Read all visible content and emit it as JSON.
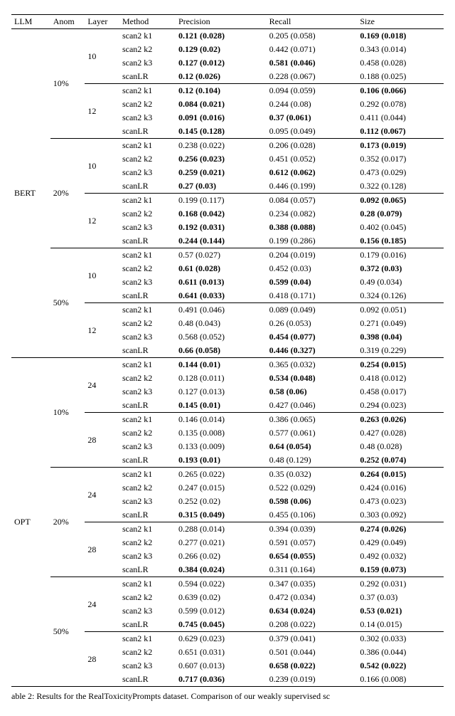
{
  "header": {
    "llm": "LLM",
    "anom": "Anom",
    "layer": "Layer",
    "method": "Method",
    "precision": "Precision",
    "recall": "Recall",
    "size": "Size"
  },
  "llms": [
    {
      "name": "BERT",
      "anoms": [
        {
          "label": "10%",
          "layers": [
            {
              "label": "10",
              "rows": [
                {
                  "method": "scan2 k1",
                  "p": "0.121 (0.028)",
                  "pb": true,
                  "r": "0.205 (0.058)",
                  "rb": false,
                  "s": "0.169 (0.018)",
                  "sb": true
                },
                {
                  "method": "scan2 k2",
                  "p": "0.129 (0.02)",
                  "pb": true,
                  "r": "0.442 (0.071)",
                  "rb": false,
                  "s": "0.343 (0.014)",
                  "sb": false
                },
                {
                  "method": "scan2 k3",
                  "p": "0.127 (0.012)",
                  "pb": true,
                  "r": "0.581 (0.046)",
                  "rb": true,
                  "s": "0.458 (0.028)",
                  "sb": false
                },
                {
                  "method": "scanLR",
                  "p": "0.12 (0.026)",
                  "pb": true,
                  "r": "0.228 (0.067)",
                  "rb": false,
                  "s": "0.188 (0.025)",
                  "sb": false
                }
              ]
            },
            {
              "label": "12",
              "rows": [
                {
                  "method": "scan2 k1",
                  "p": "0.12 (0.104)",
                  "pb": true,
                  "r": "0.094 (0.059)",
                  "rb": false,
                  "s": "0.106 (0.066)",
                  "sb": true
                },
                {
                  "method": "scan2 k2",
                  "p": "0.084 (0.021)",
                  "pb": true,
                  "r": "0.244 (0.08)",
                  "rb": false,
                  "s": "0.292 (0.078)",
                  "sb": false
                },
                {
                  "method": "scan2 k3",
                  "p": "0.091 (0.016)",
                  "pb": true,
                  "r": "0.37 (0.061)",
                  "rb": true,
                  "s": "0.411 (0.044)",
                  "sb": false
                },
                {
                  "method": "scanLR",
                  "p": "0.145 (0.128)",
                  "pb": true,
                  "r": "0.095 (0.049)",
                  "rb": false,
                  "s": "0.112 (0.067)",
                  "sb": true
                }
              ]
            }
          ]
        },
        {
          "label": "20%",
          "layers": [
            {
              "label": "10",
              "rows": [
                {
                  "method": "scan2 k1",
                  "p": "0.238 (0.022)",
                  "pb": false,
                  "r": "0.206 (0.028)",
                  "rb": false,
                  "s": "0.173 (0.019)",
                  "sb": true
                },
                {
                  "method": "scan2 k2",
                  "p": "0.256 (0.023)",
                  "pb": true,
                  "r": "0.451 (0.052)",
                  "rb": false,
                  "s": "0.352 (0.017)",
                  "sb": false
                },
                {
                  "method": "scan2 k3",
                  "p": "0.259 (0.021)",
                  "pb": true,
                  "r": "0.612 (0.062)",
                  "rb": true,
                  "s": "0.473 (0.029)",
                  "sb": false
                },
                {
                  "method": "scanLR",
                  "p": "0.27 (0.03)",
                  "pb": true,
                  "r": "0.446 (0.199)",
                  "rb": false,
                  "s": "0.322 (0.128)",
                  "sb": false
                }
              ]
            },
            {
              "label": "12",
              "rows": [
                {
                  "method": "scan2 k1",
                  "p": "0.199 (0.117)",
                  "pb": false,
                  "r": "0.084 (0.057)",
                  "rb": false,
                  "s": "0.092 (0.065)",
                  "sb": true
                },
                {
                  "method": "scan2 k2",
                  "p": "0.168 (0.042)",
                  "pb": true,
                  "r": "0.234 (0.082)",
                  "rb": false,
                  "s": "0.28 (0.079)",
                  "sb": true
                },
                {
                  "method": "scan2 k3",
                  "p": "0.192 (0.031)",
                  "pb": true,
                  "r": "0.388 (0.088)",
                  "rb": true,
                  "s": "0.402 (0.045)",
                  "sb": false
                },
                {
                  "method": "scanLR",
                  "p": "0.244 (0.144)",
                  "pb": true,
                  "r": "0.199 (0.286)",
                  "rb": false,
                  "s": "0.156 (0.185)",
                  "sb": true
                }
              ]
            }
          ]
        },
        {
          "label": "50%",
          "layers": [
            {
              "label": "10",
              "rows": [
                {
                  "method": "scan2 k1",
                  "p": "0.57 (0.027)",
                  "pb": false,
                  "r": "0.204 (0.019)",
                  "rb": false,
                  "s": "0.179 (0.016)",
                  "sb": false
                },
                {
                  "method": "scan2 k2",
                  "p": "0.61 (0.028)",
                  "pb": true,
                  "r": "0.452 (0.03)",
                  "rb": false,
                  "s": "0.372 (0.03)",
                  "sb": true
                },
                {
                  "method": "scan2 k3",
                  "p": "0.611 (0.013)",
                  "pb": true,
                  "r": "0.599 (0.04)",
                  "rb": true,
                  "s": "0.49 (0.034)",
                  "sb": false
                },
                {
                  "method": "scanLR",
                  "p": "0.641 (0.033)",
                  "pb": true,
                  "r": "0.418 (0.171)",
                  "rb": false,
                  "s": "0.324 (0.126)",
                  "sb": false
                }
              ]
            },
            {
              "label": "12",
              "rows": [
                {
                  "method": "scan2 k1",
                  "p": "0.491 (0.046)",
                  "pb": false,
                  "r": "0.089 (0.049)",
                  "rb": false,
                  "s": "0.092 (0.051)",
                  "sb": false
                },
                {
                  "method": "scan2 k2",
                  "p": "0.48 (0.043)",
                  "pb": false,
                  "r": "0.26 (0.053)",
                  "rb": false,
                  "s": "0.271 (0.049)",
                  "sb": false
                },
                {
                  "method": "scan2 k3",
                  "p": "0.568 (0.052)",
                  "pb": false,
                  "r": "0.454 (0.077)",
                  "rb": true,
                  "s": "0.398 (0.04)",
                  "sb": true
                },
                {
                  "method": "scanLR",
                  "p": "0.66 (0.058)",
                  "pb": true,
                  "r": "0.446 (0.327)",
                  "rb": true,
                  "s": "0.319 (0.229)",
                  "sb": false
                }
              ]
            }
          ]
        }
      ]
    },
    {
      "name": "OPT",
      "anoms": [
        {
          "label": "10%",
          "layers": [
            {
              "label": "24",
              "rows": [
                {
                  "method": "scan2 k1",
                  "p": "0.144 (0.01)",
                  "pb": true,
                  "r": "0.365 (0.032)",
                  "rb": false,
                  "s": "0.254 (0.015)",
                  "sb": true
                },
                {
                  "method": "scan2 k2",
                  "p": "0.128 (0.011)",
                  "pb": false,
                  "r": "0.534 (0.048)",
                  "rb": true,
                  "s": "0.418 (0.012)",
                  "sb": false
                },
                {
                  "method": "scan2 k3",
                  "p": "0.127 (0.013)",
                  "pb": false,
                  "r": "0.58 (0.06)",
                  "rb": true,
                  "s": "0.458 (0.017)",
                  "sb": false
                },
                {
                  "method": "scanLR",
                  "p": "0.145 (0.01)",
                  "pb": true,
                  "r": "0.427 (0.046)",
                  "rb": false,
                  "s": "0.294 (0.023)",
                  "sb": false
                }
              ]
            },
            {
              "label": "28",
              "rows": [
                {
                  "method": "scan2 k1",
                  "p": "0.146 (0.014)",
                  "pb": false,
                  "r": "0.386 (0.065)",
                  "rb": false,
                  "s": "0.263 (0.026)",
                  "sb": true
                },
                {
                  "method": "scan2 k2",
                  "p": "0.135 (0.008)",
                  "pb": false,
                  "r": "0.577 (0.061)",
                  "rb": false,
                  "s": "0.427 (0.028)",
                  "sb": false
                },
                {
                  "method": "scan2 k3",
                  "p": "0.133 (0.009)",
                  "pb": false,
                  "r": "0.64 (0.054)",
                  "rb": true,
                  "s": "0.48 (0.028)",
                  "sb": false
                },
                {
                  "method": "scanLR",
                  "p": "0.193 (0.01)",
                  "pb": true,
                  "r": "0.48 (0.129)",
                  "rb": false,
                  "s": "0.252 (0.074)",
                  "sb": true
                }
              ]
            }
          ]
        },
        {
          "label": "20%",
          "layers": [
            {
              "label": "24",
              "rows": [
                {
                  "method": "scan2 k1",
                  "p": "0.265 (0.022)",
                  "pb": false,
                  "r": "0.35 (0.032)",
                  "rb": false,
                  "s": "0.264 (0.015)",
                  "sb": true
                },
                {
                  "method": "scan2 k2",
                  "p": "0.247 (0.015)",
                  "pb": false,
                  "r": "0.522 (0.029)",
                  "rb": false,
                  "s": "0.424 (0.016)",
                  "sb": false
                },
                {
                  "method": "scan2 k3",
                  "p": "0.252 (0.02)",
                  "pb": false,
                  "r": "0.598 (0.06)",
                  "rb": true,
                  "s": "0.473 (0.023)",
                  "sb": false
                },
                {
                  "method": "scanLR",
                  "p": "0.315 (0.049)",
                  "pb": true,
                  "r": "0.455 (0.106)",
                  "rb": false,
                  "s": "0.303 (0.092)",
                  "sb": false
                }
              ]
            },
            {
              "label": "28",
              "rows": [
                {
                  "method": "scan2 k1",
                  "p": "0.288 (0.014)",
                  "pb": false,
                  "r": "0.394 (0.039)",
                  "rb": false,
                  "s": "0.274 (0.026)",
                  "sb": true
                },
                {
                  "method": "scan2 k2",
                  "p": "0.277 (0.021)",
                  "pb": false,
                  "r": "0.591 (0.057)",
                  "rb": false,
                  "s": "0.429 (0.049)",
                  "sb": false
                },
                {
                  "method": "scan2 k3",
                  "p": "0.266 (0.02)",
                  "pb": false,
                  "r": "0.654 (0.055)",
                  "rb": true,
                  "s": "0.492 (0.032)",
                  "sb": false
                },
                {
                  "method": "scanLR",
                  "p": "0.384 (0.024)",
                  "pb": true,
                  "r": "0.311 (0.164)",
                  "rb": false,
                  "s": "0.159 (0.073)",
                  "sb": true
                }
              ]
            }
          ]
        },
        {
          "label": "50%",
          "layers": [
            {
              "label": "24",
              "rows": [
                {
                  "method": "scan2 k1",
                  "p": "0.594 (0.022)",
                  "pb": false,
                  "r": "0.347 (0.035)",
                  "rb": false,
                  "s": "0.292 (0.031)",
                  "sb": false
                },
                {
                  "method": "scan2 k2",
                  "p": "0.639 (0.02)",
                  "pb": false,
                  "r": "0.472 (0.034)",
                  "rb": false,
                  "s": "0.37 (0.03)",
                  "sb": false
                },
                {
                  "method": "scan2 k3",
                  "p": "0.599 (0.012)",
                  "pb": false,
                  "r": "0.634 (0.024)",
                  "rb": true,
                  "s": "0.53 (0.021)",
                  "sb": true
                },
                {
                  "method": "scanLR",
                  "p": "0.745 (0.045)",
                  "pb": true,
                  "r": "0.208 (0.022)",
                  "rb": false,
                  "s": "0.14 (0.015)",
                  "sb": false
                }
              ]
            },
            {
              "label": "28",
              "rows": [
                {
                  "method": "scan2 k1",
                  "p": "0.629 (0.023)",
                  "pb": false,
                  "r": "0.379 (0.041)",
                  "rb": false,
                  "s": "0.302 (0.033)",
                  "sb": false
                },
                {
                  "method": "scan2 k2",
                  "p": "0.651 (0.031)",
                  "pb": false,
                  "r": "0.501 (0.044)",
                  "rb": false,
                  "s": "0.386 (0.044)",
                  "sb": false
                },
                {
                  "method": "scan2 k3",
                  "p": "0.607 (0.013)",
                  "pb": false,
                  "r": "0.658 (0.022)",
                  "rb": true,
                  "s": "0.542 (0.022)",
                  "sb": true
                },
                {
                  "method": "scanLR",
                  "p": "0.717 (0.036)",
                  "pb": true,
                  "r": "0.239 (0.019)",
                  "rb": false,
                  "s": "0.166 (0.008)",
                  "sb": false
                }
              ]
            }
          ]
        }
      ]
    }
  ],
  "caption": "able 2: Results for the RealToxicityPrompts dataset. Comparison of our weakly supervised sc"
}
